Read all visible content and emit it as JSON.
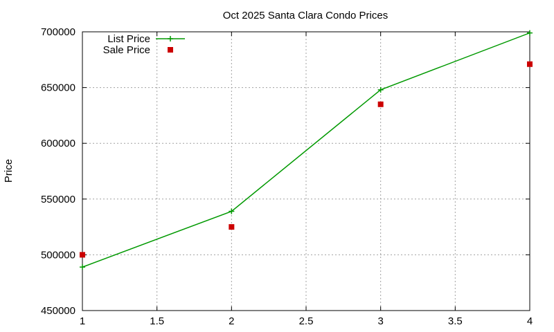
{
  "chart_data": {
    "type": "line",
    "title": "Oct 2025 Santa Clara Condo Prices",
    "xlabel": "",
    "ylabel": "Price",
    "xlim": [
      1,
      4
    ],
    "ylim": [
      450000,
      700000
    ],
    "xticks": [
      1,
      1.5,
      2,
      2.5,
      3,
      3.5,
      4
    ],
    "xtick_labels": [
      "1",
      "1.5",
      "2",
      "2.5",
      "3",
      "3.5",
      "4"
    ],
    "yticks": [
      450000,
      500000,
      550000,
      600000,
      650000,
      700000
    ],
    "ytick_labels": [
      "450000",
      "500000",
      "550000",
      "600000",
      "650000",
      "700000"
    ],
    "grid": true,
    "legend_position": "top-left",
    "series": [
      {
        "name": "List Price",
        "style": "linespoints",
        "marker": "plus",
        "color": "#009900",
        "x": [
          1,
          2,
          3,
          4
        ],
        "y": [
          489000,
          539000,
          648000,
          699000
        ]
      },
      {
        "name": "Sale Price",
        "style": "points",
        "marker": "square",
        "color": "#cc0000",
        "x": [
          1,
          2,
          3,
          4
        ],
        "y": [
          500000,
          525000,
          635000,
          671000
        ]
      }
    ]
  }
}
